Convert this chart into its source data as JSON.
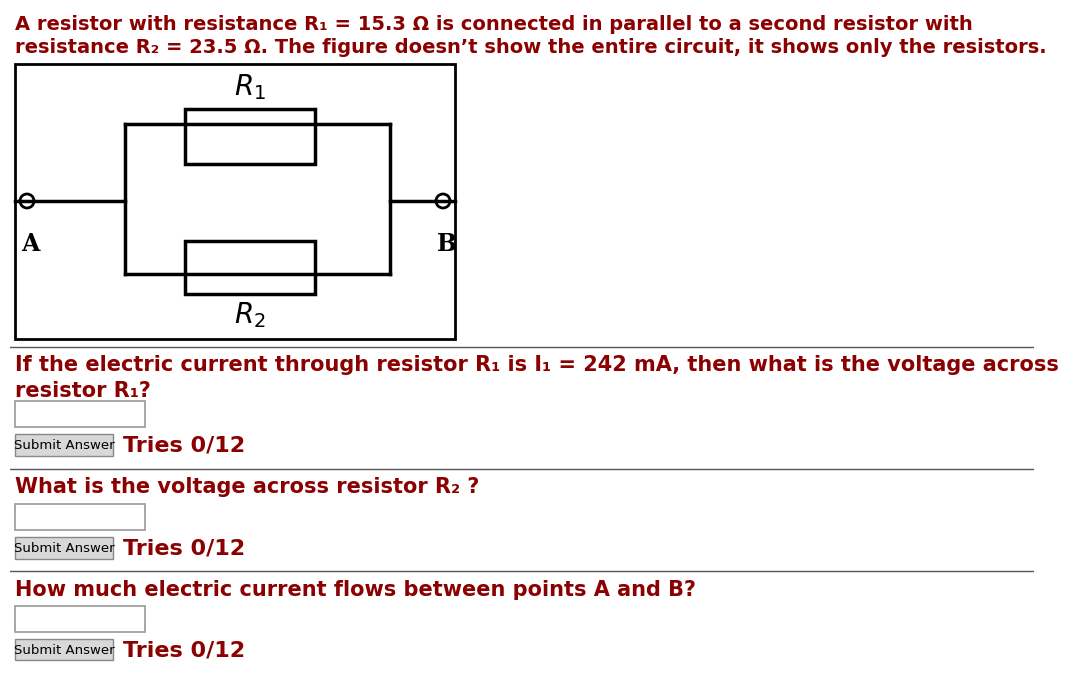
{
  "bg_color": "#ffffff",
  "text_color": "#8B0000",
  "line_color": "#000000",
  "title_line1": "A resistor with resistance R₁ = 15.3 Ω is connected in parallel to a second resistor with",
  "title_line2": "resistance R₂ = 23.5 Ω. The figure doesn’t show the entire circuit, it shows only the resistors.",
  "q1_line1": "If the electric current through resistor R₁ is I₁ = 242 mA, then what is the voltage across",
  "q1_line2": "resistor R₁?",
  "q1_tries": "Tries 0/12",
  "q2_line1": "What is the voltage across resistor R₂ ?",
  "q2_tries": "Tries 0/12",
  "q3_line1": "How much electric current flows between points A and B?",
  "q3_tries": "Tries 0/12",
  "submit_text": "Submit Answer",
  "font_size_title": 14,
  "font_size_q": 15,
  "font_size_tries": 16,
  "font_size_submit": 9.5,
  "font_size_label": 20,
  "font_size_AB": 17
}
